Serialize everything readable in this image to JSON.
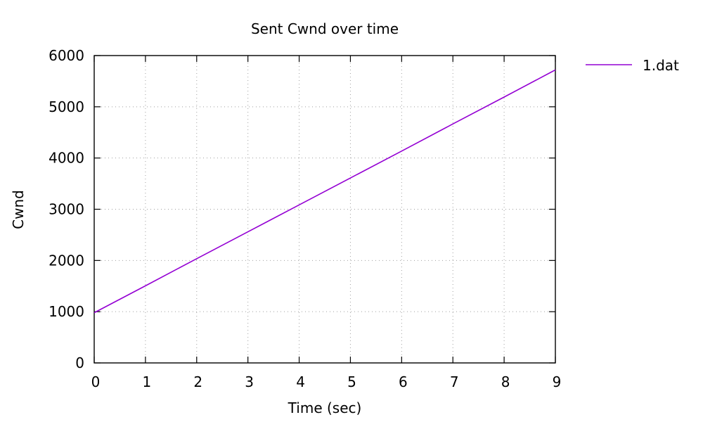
{
  "chart_data": {
    "type": "line",
    "title": "Sent Cwnd over time",
    "xlabel": "Time (sec)",
    "ylabel": "Cwnd",
    "xlim": [
      0,
      9
    ],
    "ylim": [
      0,
      6000
    ],
    "xticks": [
      "0",
      "1",
      "2",
      "3",
      "4",
      "5",
      "6",
      "7",
      "8",
      "9"
    ],
    "yticks": [
      "0",
      "1000",
      "2000",
      "3000",
      "4000",
      "5000",
      "6000"
    ],
    "grid": true,
    "legend_position": "top-right, outside plot",
    "series": [
      {
        "name": "1.dat",
        "color": "#9400d3",
        "x": [
          0,
          1,
          2,
          3,
          4,
          5,
          6,
          7,
          8,
          9
        ],
        "y": [
          980,
          1505,
          2035,
          2560,
          3085,
          3610,
          4135,
          4665,
          5190,
          5720
        ]
      }
    ]
  }
}
